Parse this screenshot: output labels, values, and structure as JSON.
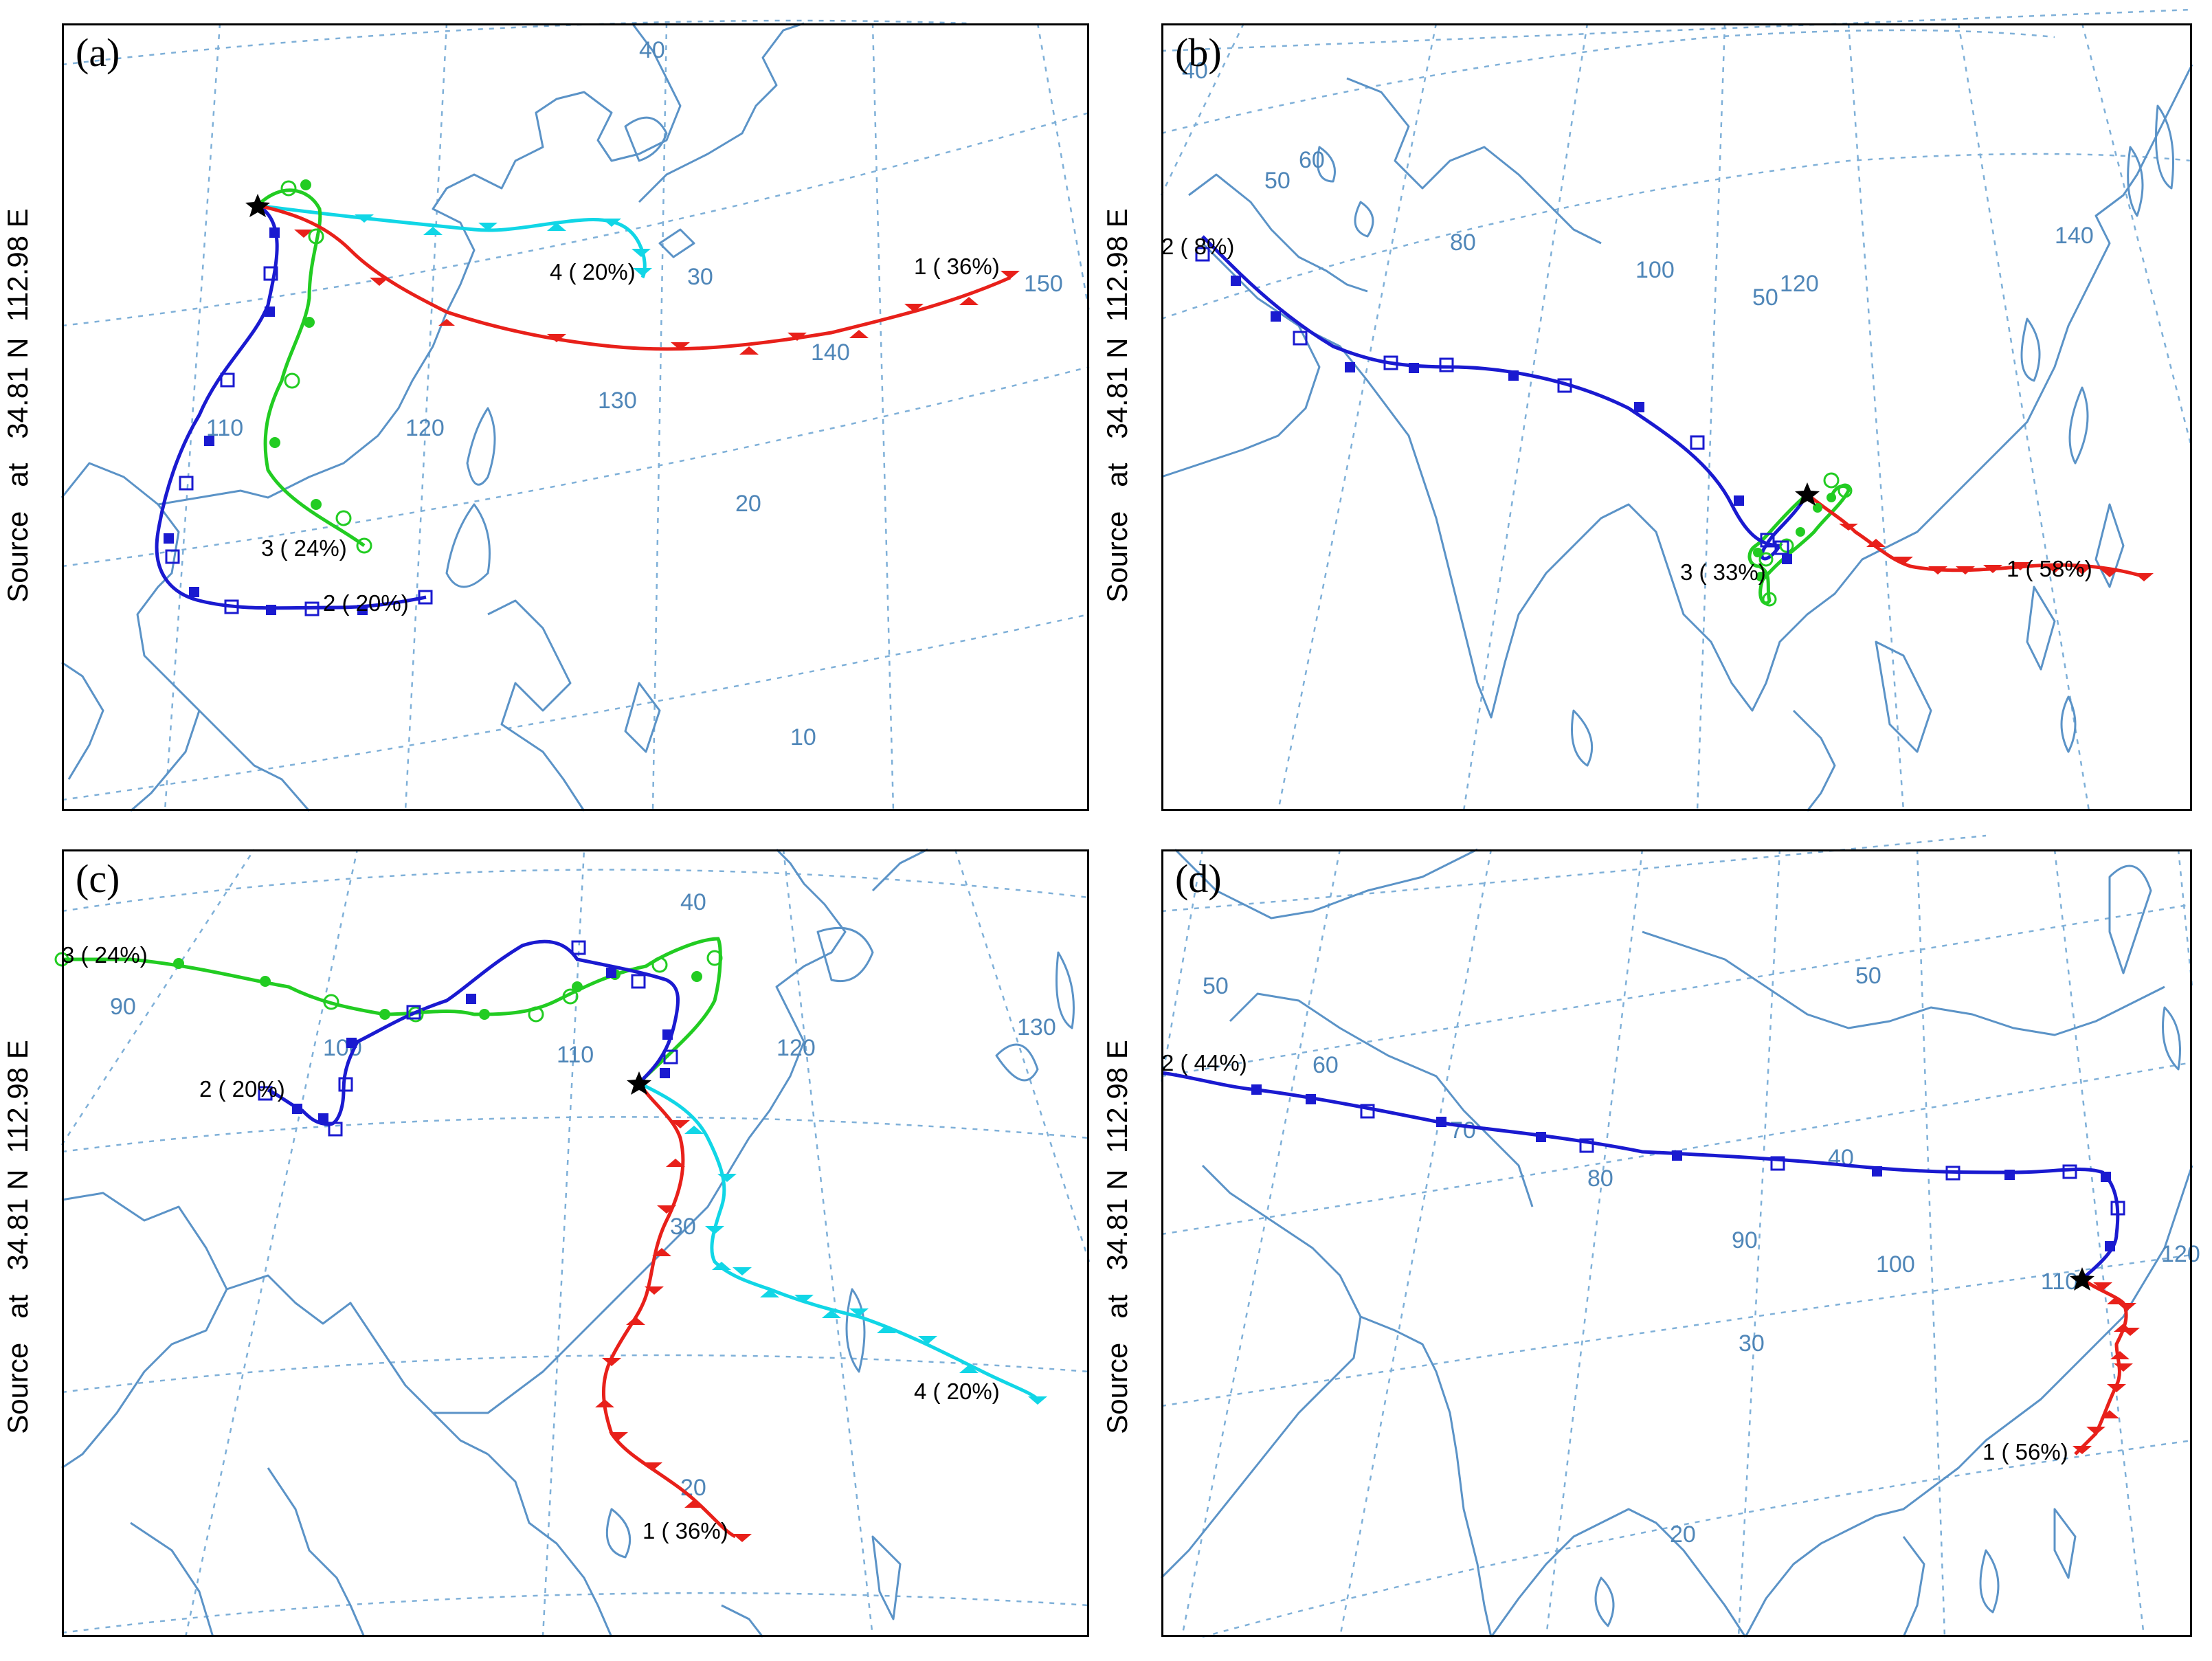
{
  "figure": {
    "source_label": "Source   at   34.81 N  112.98 E",
    "colors": {
      "frame": "#000000",
      "coast": "#5b93c7",
      "grid": "#7fb0d8",
      "grid_label": "#4f86b8",
      "trajectory_1": "#e8201a",
      "trajectory_2": "#1a1ad0",
      "trajectory_3": "#22cc22",
      "trajectory_4": "#11d6e6",
      "source_marker": "#000000"
    },
    "marker_symbols": {
      "1": "triangles",
      "2": "squares",
      "3": "circles",
      "4": "inverted-triangles"
    },
    "panels": [
      {
        "id": "a",
        "letter": "(a)",
        "longitude_labels": [
          "110",
          "120",
          "130",
          "140",
          "150"
        ],
        "latitude_labels": [
          "10",
          "20",
          "30",
          "40"
        ],
        "trajectories": [
          {
            "cluster": "1",
            "label": "1 ( 36%)",
            "color": "trajectory_1"
          },
          {
            "cluster": "2",
            "label": "2 ( 20%)",
            "color": "trajectory_2"
          },
          {
            "cluster": "3",
            "label": "3 ( 24%)",
            "color": "trajectory_3"
          },
          {
            "cluster": "4",
            "label": "4 ( 20%)",
            "color": "trajectory_4"
          }
        ]
      },
      {
        "id": "b",
        "letter": "(b)",
        "longitude_labels": [
          "40",
          "80",
          "100",
          "120",
          "140",
          "60"
        ],
        "latitude_labels": [
          "50",
          "50"
        ],
        "trajectories": [
          {
            "cluster": "1",
            "label": "1 ( 58%)",
            "color": "trajectory_1"
          },
          {
            "cluster": "2",
            "label": "2 ( 8%)",
            "color": "trajectory_2"
          },
          {
            "cluster": "3",
            "label": "3 ( 33%)",
            "color": "trajectory_3"
          }
        ]
      },
      {
        "id": "c",
        "letter": "(c)",
        "longitude_labels": [
          "90",
          "100",
          "110",
          "120",
          "130"
        ],
        "latitude_labels": [
          "20",
          "30",
          "40"
        ],
        "trajectories": [
          {
            "cluster": "1",
            "label": "1 ( 36%)",
            "color": "trajectory_1"
          },
          {
            "cluster": "2",
            "label": "2 ( 20%)",
            "color": "trajectory_2"
          },
          {
            "cluster": "3",
            "label": "3 ( 24%)",
            "color": "trajectory_3"
          },
          {
            "cluster": "4",
            "label": "4 ( 20%)",
            "color": "trajectory_4"
          }
        ]
      },
      {
        "id": "d",
        "letter": "(d)",
        "longitude_labels": [
          "60",
          "70",
          "80",
          "90",
          "100",
          "110",
          "120"
        ],
        "latitude_labels": [
          "20",
          "30",
          "40",
          "50",
          "50"
        ],
        "trajectories": [
          {
            "cluster": "1",
            "label": "1 ( 56%)",
            "color": "trajectory_1"
          },
          {
            "cluster": "2",
            "label": "2 ( 44%)",
            "color": "trajectory_2"
          }
        ]
      }
    ]
  }
}
